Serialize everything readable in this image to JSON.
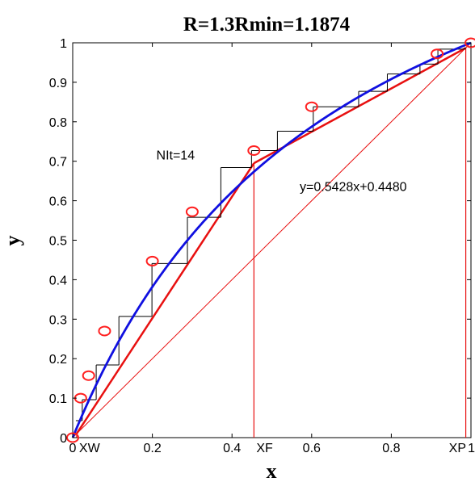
{
  "chart_data": {
    "type": "line",
    "title": "R=1.3Rmin=1.1874",
    "xlabel": "x",
    "ylabel": "y",
    "xlim": [
      0,
      1
    ],
    "ylim": [
      0,
      1
    ],
    "grid": false,
    "x_ticks": [
      {
        "value": 0,
        "label": "0"
      },
      {
        "value": 0.2,
        "label": "0.2"
      },
      {
        "value": 0.4,
        "label": "0.4"
      },
      {
        "value": 0.6,
        "label": "0.6"
      },
      {
        "value": 0.8,
        "label": "0.8"
      },
      {
        "value": 1,
        "label": "1"
      }
    ],
    "y_ticks": [
      {
        "value": 0,
        "label": "0"
      },
      {
        "value": 0.1,
        "label": "0.1"
      },
      {
        "value": 0.2,
        "label": "0.2"
      },
      {
        "value": 0.3,
        "label": "0.3"
      },
      {
        "value": 0.4,
        "label": "0.4"
      },
      {
        "value": 0.5,
        "label": "0.5"
      },
      {
        "value": 0.6,
        "label": "0.6"
      },
      {
        "value": 0.7,
        "label": "0.7"
      },
      {
        "value": 0.8,
        "label": "0.8"
      },
      {
        "value": 0.9,
        "label": "0.9"
      },
      {
        "value": 1,
        "label": "1"
      }
    ],
    "equilibrium_curve": {
      "color": "#1010e0",
      "alpha": 2.47
    },
    "equilibrium_points": [
      {
        "x": 0.0,
        "y": 0.0
      },
      {
        "x": 0.02,
        "y": 0.1
      },
      {
        "x": 0.04,
        "y": 0.157
      },
      {
        "x": 0.08,
        "y": 0.27
      },
      {
        "x": 0.2,
        "y": 0.447
      },
      {
        "x": 0.3,
        "y": 0.572
      },
      {
        "x": 0.455,
        "y": 0.727
      },
      {
        "x": 0.6,
        "y": 0.838
      },
      {
        "x": 0.915,
        "y": 0.972
      },
      {
        "x": 1.0,
        "y": 1.0
      }
    ],
    "marker_color": "#ff2020",
    "operating_lines": {
      "color": "#e81010",
      "rectifying": {
        "from": [
          0.455,
          0.695
        ],
        "to": [
          0.987,
          0.987
        ],
        "equation": "y=0.5428x+0.4480"
      },
      "stripping": {
        "from": [
          0.01,
          0.01
        ],
        "to": [
          0.455,
          0.695
        ]
      },
      "diagonal": {
        "from": [
          0,
          0
        ],
        "to": [
          1,
          1
        ]
      }
    },
    "vertical_markers": [
      {
        "x": 0.01,
        "label": "XW"
      },
      {
        "x": 0.455,
        "label": "XF"
      },
      {
        "x": 0.987,
        "label": "XP"
      }
    ],
    "stages": [
      {
        "x_from": 0.987,
        "x_to": 0.985,
        "y": 0.987
      },
      {
        "x_from": 0.985,
        "x_to": 0.917,
        "y": 0.984
      },
      {
        "x_from": 0.917,
        "x_to": 0.872,
        "y": 0.946
      },
      {
        "x_from": 0.872,
        "x_to": 0.79,
        "y": 0.921
      },
      {
        "x_from": 0.79,
        "x_to": 0.718,
        "y": 0.877
      },
      {
        "x_from": 0.718,
        "x_to": 0.604,
        "y": 0.838
      },
      {
        "x_from": 0.604,
        "x_to": 0.514,
        "y": 0.776
      },
      {
        "x_from": 0.514,
        "x_to": 0.449,
        "y": 0.727
      },
      {
        "x_from": 0.449,
        "x_to": 0.372,
        "y": 0.684
      },
      {
        "x_from": 0.372,
        "x_to": 0.288,
        "y": 0.558
      },
      {
        "x_from": 0.288,
        "x_to": 0.199,
        "y": 0.441
      },
      {
        "x_from": 0.199,
        "x_to": 0.116,
        "y": 0.307
      },
      {
        "x_from": 0.116,
        "x_to": 0.059,
        "y": 0.184
      },
      {
        "x_from": 0.059,
        "x_to": 0.024,
        "y": 0.096
      },
      {
        "x_from": 0.024,
        "x_to": 0.008,
        "y": 0.043
      }
    ],
    "annotations": [
      {
        "text": "NIt=14",
        "x": 0.21,
        "y": 0.705
      },
      {
        "text": "y=0.5428x+0.4480",
        "x": 0.57,
        "y": 0.625
      }
    ]
  }
}
